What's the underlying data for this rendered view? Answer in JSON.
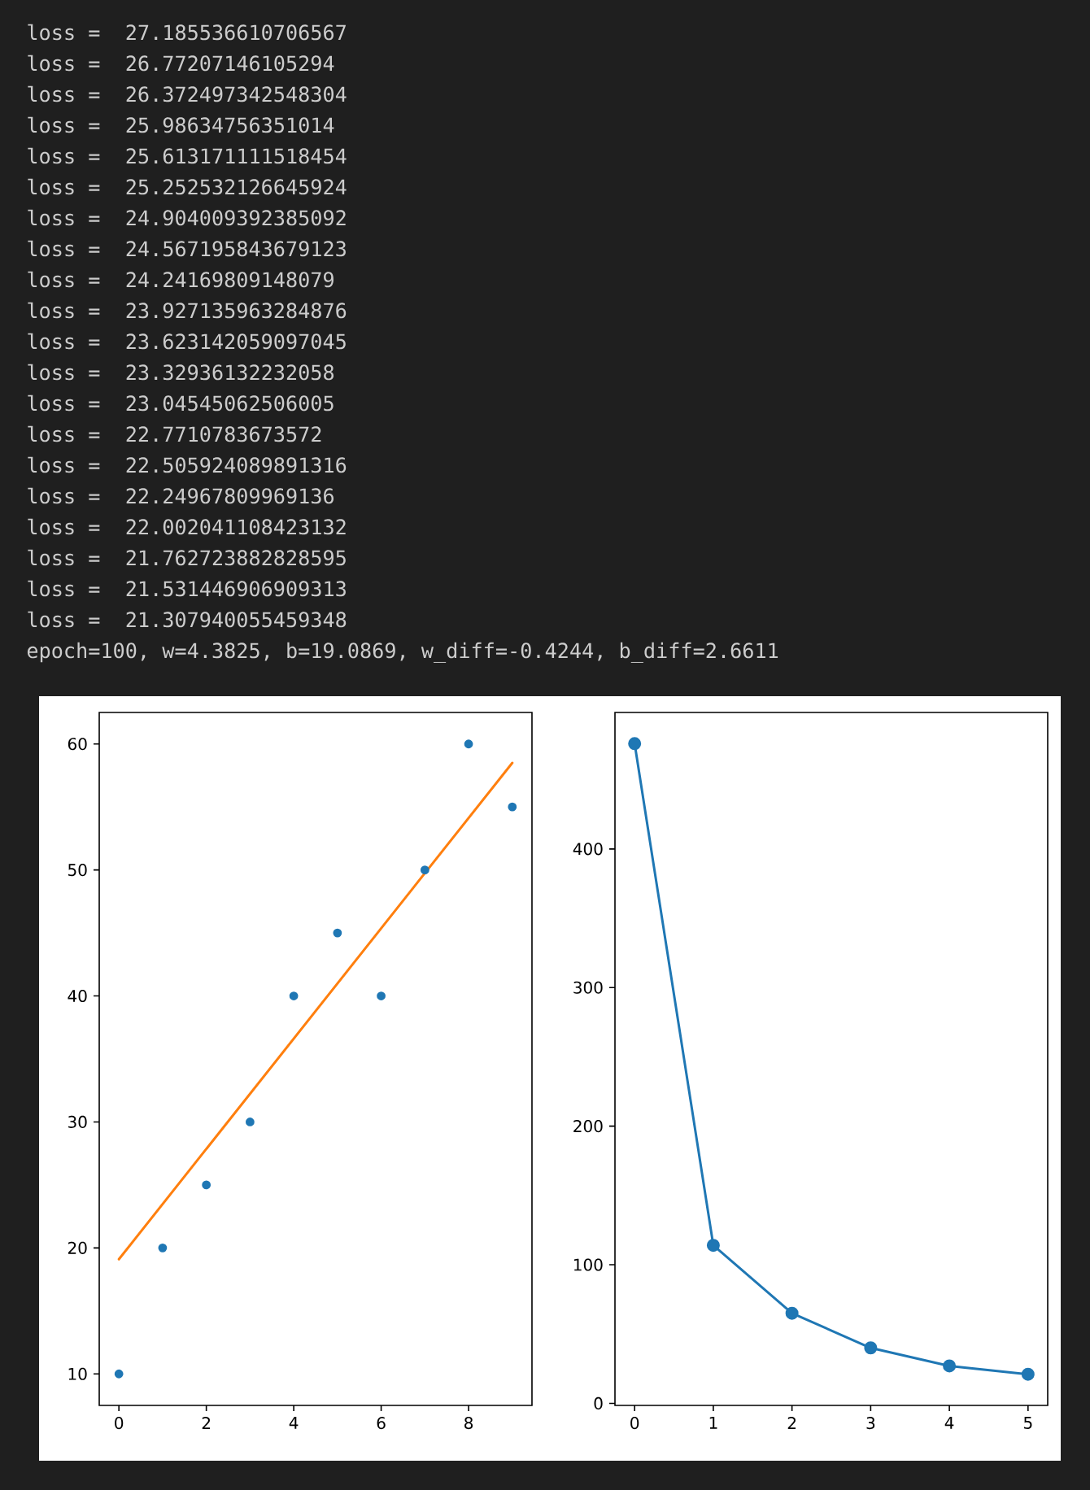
{
  "chart_data": [
    {
      "type": "other",
      "annotations": [
        "loss =  27.185536610706567",
        "loss =  26.77207146105294",
        "loss =  26.372497342548304",
        "loss =  25.98634756351014",
        "loss =  25.613171111518454",
        "loss =  25.252532126645924",
        "loss =  24.904009392385092",
        "loss =  24.567195843679123",
        "loss =  24.24169809148079",
        "loss =  23.927135963284876",
        "loss =  23.623142059097045",
        "loss =  23.32936132232058",
        "loss =  23.04545062506005",
        "loss =  22.7710783673572",
        "loss =  22.505924089891316",
        "loss =  22.24967809969136",
        "loss =  22.002041108423132",
        "loss =  21.762723882828595",
        "loss =  21.531446906909313",
        "loss =  21.307940055459348",
        "epoch=100, w=4.3825, b=19.0869, w_diff=-0.4244, b_diff=2.6611"
      ]
    },
    {
      "type": "scatter",
      "x": [
        0,
        1,
        2,
        3,
        4,
        5,
        6,
        7,
        8,
        9
      ],
      "series": [
        {
          "color": "#1f77b4",
          "values": [
            10,
            20,
            25,
            30,
            40,
            45,
            40,
            50,
            60,
            55
          ]
        },
        {
          "type": "line",
          "x": [
            0,
            9
          ],
          "values": [
            19.1,
            58.5
          ],
          "color": "#ff7f0e",
          "marker": "none"
        }
      ],
      "xlim": [
        -0.45,
        9.45
      ],
      "ylim": [
        7.5,
        62.5
      ],
      "xticks": [
        0,
        2,
        4,
        6,
        8
      ],
      "yticks": [
        10,
        20,
        30,
        40,
        50,
        60
      ],
      "marker": "circle"
    },
    {
      "type": "line",
      "x": [
        0,
        1,
        2,
        3,
        4,
        5
      ],
      "series": [
        {
          "color": "#1f77b4",
          "values": [
            476,
            114,
            65,
            40,
            27,
            21
          ]
        }
      ],
      "xlim": [
        -0.25,
        5.25
      ],
      "ylim": [
        -1.5,
        498.5
      ],
      "xticks": [
        0,
        1,
        2,
        3,
        4,
        5
      ],
      "yticks": [
        0,
        100,
        200,
        300,
        400
      ],
      "marker": "circle"
    }
  ]
}
